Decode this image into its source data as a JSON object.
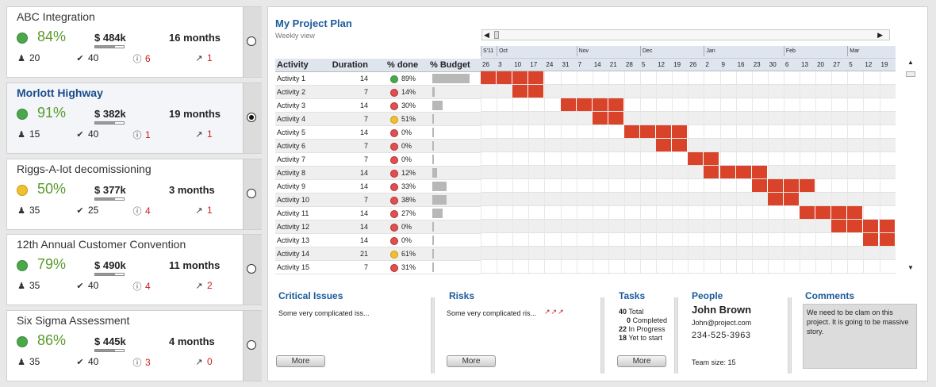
{
  "projects": [
    {
      "name": "ABC Integration",
      "pct": "84%",
      "status": "green",
      "budget": "$ 484k",
      "budget_used": 0.7,
      "duration": "16 months",
      "people": "20",
      "tasks": "40",
      "issues": "6",
      "risks": "1",
      "selected": false
    },
    {
      "name": "Morlott Highway",
      "pct": "91%",
      "status": "green",
      "budget": "$ 382k",
      "budget_used": 0.7,
      "duration": "19 months",
      "people": "15",
      "tasks": "40",
      "issues": "1",
      "risks": "1",
      "selected": true
    },
    {
      "name": "Riggs-A-lot decomissioning",
      "pct": "50%",
      "status": "yellow",
      "budget": "$ 377k",
      "budget_used": 0.7,
      "duration": "3 months",
      "people": "35",
      "tasks": "25",
      "issues": "4",
      "risks": "1",
      "selected": false
    },
    {
      "name": "12th Annual Customer Convention",
      "pct": "79%",
      "status": "green",
      "budget": "$ 490k",
      "budget_used": 0.7,
      "duration": "11 months",
      "people": "35",
      "tasks": "40",
      "issues": "4",
      "risks": "2",
      "selected": false
    },
    {
      "name": "Six Sigma Assessment",
      "pct": "86%",
      "status": "green",
      "budget": "$ 445k",
      "budget_used": 0.7,
      "duration": "4 months",
      "people": "35",
      "tasks": "40",
      "issues": "3",
      "risks": "0",
      "selected": false
    }
  ],
  "plan": {
    "title": "My Project Plan",
    "subtitle": "Weekly view",
    "headers": {
      "activity": "Activity",
      "duration": "Duration",
      "pct_done": "% done",
      "budget": "% Budget"
    },
    "months": [
      "S'11",
      "Oct",
      "Nov",
      "Dec",
      "Jan",
      "Feb",
      "Mar"
    ],
    "month_start_index": [
      0,
      1,
      6,
      10,
      14,
      19,
      23
    ],
    "days": [
      "26",
      "3",
      "10",
      "17",
      "24",
      "31",
      "7",
      "14",
      "21",
      "28",
      "5",
      "12",
      "19",
      "26",
      "2",
      "9",
      "16",
      "23",
      "30",
      "6",
      "13",
      "20",
      "27",
      "5",
      "12",
      "19"
    ],
    "activities": [
      {
        "name": "Activity 1",
        "duration": "14",
        "status": "green",
        "pct": "89%",
        "budget": 0.9,
        "start": 0,
        "len": 4
      },
      {
        "name": "Activity 2",
        "duration": "7",
        "status": "red",
        "pct": "14%",
        "budget": 0.05,
        "start": 2,
        "len": 2
      },
      {
        "name": "Activity 3",
        "duration": "14",
        "status": "red",
        "pct": "30%",
        "budget": 0.25,
        "start": 5,
        "len": 4
      },
      {
        "name": "Activity 4",
        "duration": "7",
        "status": "yellow",
        "pct": "51%",
        "budget": 0,
        "start": 7,
        "len": 2
      },
      {
        "name": "Activity 5",
        "duration": "14",
        "status": "red",
        "pct": "0%",
        "budget": 0,
        "start": 9,
        "len": 4
      },
      {
        "name": "Activity 6",
        "duration": "7",
        "status": "red",
        "pct": "0%",
        "budget": 0,
        "start": 11,
        "len": 2
      },
      {
        "name": "Activity 7",
        "duration": "7",
        "status": "red",
        "pct": "0%",
        "budget": 0,
        "start": 13,
        "len": 2
      },
      {
        "name": "Activity 8",
        "duration": "14",
        "status": "red",
        "pct": "12%",
        "budget": 0.12,
        "start": 14,
        "len": 4
      },
      {
        "name": "Activity 9",
        "duration": "14",
        "status": "red",
        "pct": "33%",
        "budget": 0.35,
        "start": 17,
        "len": 4
      },
      {
        "name": "Activity 10",
        "duration": "7",
        "status": "red",
        "pct": "38%",
        "budget": 0.35,
        "start": 18,
        "len": 2
      },
      {
        "name": "Activity 11",
        "duration": "14",
        "status": "red",
        "pct": "27%",
        "budget": 0.25,
        "start": 20,
        "len": 4
      },
      {
        "name": "Activity 12",
        "duration": "14",
        "status": "red",
        "pct": "0%",
        "budget": 0,
        "start": 22,
        "len": 4
      },
      {
        "name": "Activity 13",
        "duration": "14",
        "status": "red",
        "pct": "0%",
        "budget": 0,
        "start": 24,
        "len": 2
      },
      {
        "name": "Activity 14",
        "duration": "21",
        "status": "yellow",
        "pct": "61%",
        "budget": 0.03,
        "start": 26,
        "len": 0
      },
      {
        "name": "Activity 15",
        "duration": "7",
        "status": "red",
        "pct": "31%",
        "budget": 0.03,
        "start": 26,
        "len": 0
      }
    ]
  },
  "critical_issues": {
    "title": "Critical Issues",
    "text": "Some very complicated iss...",
    "more": "More"
  },
  "risks": {
    "title": "Risks",
    "text": "Some very complicated ris...",
    "more": "More"
  },
  "tasks": {
    "title": "Tasks",
    "lines": [
      {
        "num": "40",
        "label": "Total"
      },
      {
        "num": "0",
        "label": "Completed"
      },
      {
        "num": "22",
        "label": "In Progress"
      },
      {
        "num": "18",
        "label": "Yet to start"
      }
    ],
    "more": "More"
  },
  "people": {
    "title": "People",
    "name": "John Brown",
    "email": "John@project.com",
    "phone": "234-525-3963",
    "team_size": "Team size: 15"
  },
  "comments": {
    "title": "Comments",
    "text": "We need to be clam on this project. It is going to be massive story."
  },
  "colors": {
    "green": "#4aa84a",
    "yellow": "#f0c030",
    "red": "#e05050",
    "gantt_bar": "#d9432a",
    "title_blue": "#1a5a9a"
  }
}
